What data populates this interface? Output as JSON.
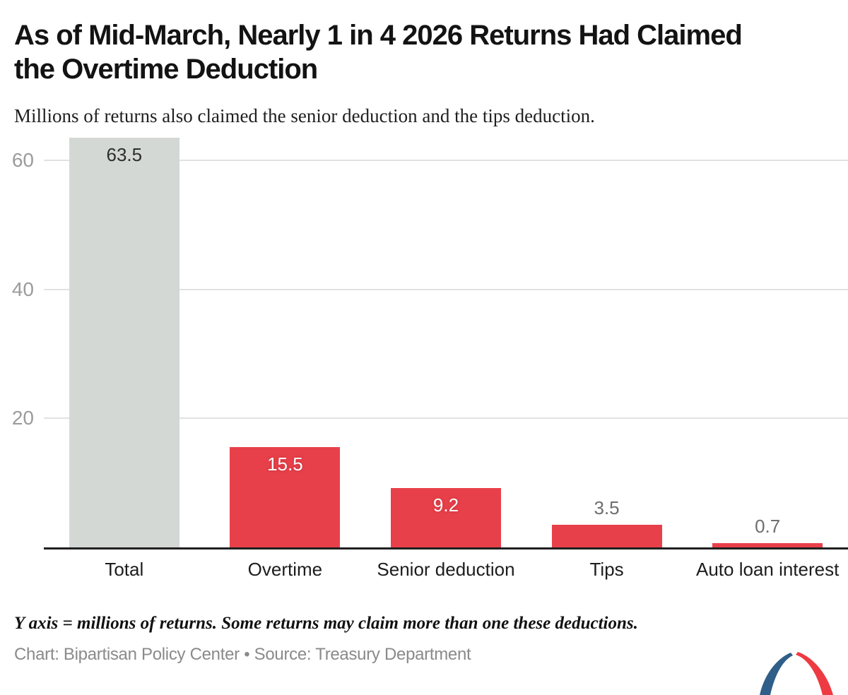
{
  "header": {
    "title": "As of Mid-March, Nearly 1 in 4 2026 Returns Had Claimed\nthe Overtime Deduction",
    "subtitle": "Millions of returns also claimed the senior deduction and the tips deduction."
  },
  "chart_data": {
    "type": "bar",
    "categories": [
      "Total",
      "Overtime",
      "Senior deduction",
      "Tips",
      "Auto loan interest"
    ],
    "values": [
      63.5,
      15.5,
      9.2,
      3.5,
      0.7
    ],
    "value_labels": [
      "63.5",
      "15.5",
      "9.2",
      "3.5",
      "0.7"
    ],
    "bar_colors": [
      "#d4d8d5",
      "#e8404a",
      "#e8404a",
      "#e8404a",
      "#e8404a"
    ],
    "label_colors": [
      "#2d2d2d",
      "#ffffff",
      "#ffffff",
      "#6e6e6e",
      "#6e6e6e"
    ],
    "label_inside": [
      true,
      true,
      true,
      false,
      false
    ],
    "yticks": [
      20,
      40,
      60
    ],
    "ylim": [
      0,
      63.6
    ],
    "ylabel": "",
    "xlabel": "",
    "grid": "horizontal",
    "legend": "none",
    "title": "As of Mid-March, Nearly 1 in 4 2026 Returns Had Claimed the Overtime Deduction"
  },
  "footer": {
    "note": "Y axis = millions of returns. Some returns may claim more than one these deductions.",
    "credit": "Chart: Bipartisan Policy Center • Source: Treasury Department"
  },
  "logo": {
    "name": "bipartisan-policy-center-logo",
    "left_color": "#2f5f88",
    "right_color": "#ee3b43"
  }
}
